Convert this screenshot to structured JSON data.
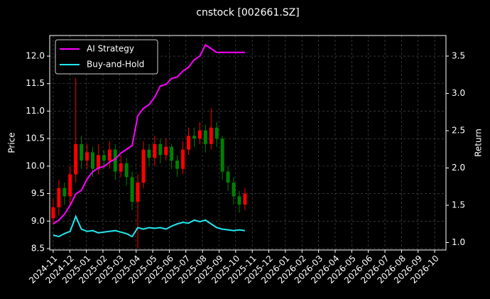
{
  "chart_data": {
    "type": "candlestick",
    "title": "cnstock [002661.SZ]",
    "y_label": "Price",
    "y2_label": "Return",
    "up_color": "#ff0000",
    "down_color": "#008000",
    "grid": true,
    "legend": "upper left",
    "x": [
      0,
      0.34,
      0.68,
      1.02,
      1.36,
      1.7,
      2.04,
      2.38,
      2.72,
      3.06,
      3.4,
      3.74,
      4.08,
      4.42,
      4.76,
      5.1,
      5.44,
      5.78,
      6.12,
      6.46,
      6.8,
      7.14,
      7.48,
      7.82,
      8.16,
      8.5,
      8.84,
      9.18,
      9.52,
      9.86,
      10.2,
      10.54,
      10.88,
      11.22,
      11.56
    ],
    "open": [
      9.05,
      9.25,
      9.6,
      9.45,
      9.85,
      10.4,
      10.1,
      10.25,
      9.95,
      10.2,
      10.1,
      10.3,
      9.9,
      10.05,
      9.8,
      9.35,
      9.7,
      10.3,
      10.15,
      10.4,
      10.2,
      10.35,
      10.1,
      9.95,
      10.3,
      10.55,
      10.5,
      10.65,
      10.4,
      10.7,
      10.5,
      9.9,
      9.7,
      9.45,
      9.3
    ],
    "high": [
      9.4,
      9.75,
      9.7,
      10.0,
      11.6,
      10.55,
      10.4,
      10.35,
      10.4,
      10.3,
      10.45,
      10.4,
      10.2,
      10.15,
      9.9,
      9.85,
      10.45,
      10.4,
      10.55,
      10.5,
      10.5,
      10.4,
      10.2,
      10.45,
      10.7,
      10.7,
      10.8,
      10.75,
      11.05,
      10.8,
      10.55,
      10.0,
      9.8,
      9.55,
      9.6
    ],
    "low": [
      8.95,
      9.1,
      9.3,
      9.3,
      9.7,
      9.95,
      9.95,
      9.8,
      9.85,
      9.95,
      9.95,
      9.75,
      9.8,
      9.65,
      9.2,
      8.5,
      9.6,
      10.0,
      10.0,
      10.05,
      10.1,
      9.95,
      9.8,
      9.85,
      10.2,
      10.35,
      10.4,
      10.25,
      10.3,
      10.35,
      9.75,
      9.55,
      9.3,
      9.15,
      9.2
    ],
    "close": [
      9.25,
      9.6,
      9.45,
      9.85,
      10.4,
      10.1,
      10.25,
      9.95,
      10.2,
      10.1,
      10.3,
      9.9,
      10.05,
      9.8,
      9.35,
      9.7,
      10.3,
      10.15,
      10.4,
      10.2,
      10.35,
      10.1,
      9.95,
      10.3,
      10.55,
      10.5,
      10.65,
      10.4,
      10.7,
      10.5,
      9.9,
      9.7,
      9.45,
      9.3,
      9.5
    ],
    "series": [
      {
        "name": "AI Strategy",
        "color": "#ff00ff",
        "axis": "y2",
        "values": [
          1.25,
          1.3,
          1.38,
          1.5,
          1.65,
          1.7,
          1.85,
          1.95,
          2.0,
          2.02,
          2.08,
          2.12,
          2.2,
          2.25,
          2.3,
          2.7,
          2.8,
          2.85,
          2.95,
          3.1,
          3.12,
          3.2,
          3.22,
          3.3,
          3.35,
          3.45,
          3.5,
          3.65,
          3.6,
          3.55,
          3.55,
          3.55,
          3.55,
          3.55,
          3.55
        ]
      },
      {
        "name": "Buy-and-Hold",
        "color": "#22e8f0",
        "axis": "y2",
        "values": [
          1.1,
          1.08,
          1.12,
          1.15,
          1.35,
          1.18,
          1.15,
          1.16,
          1.13,
          1.14,
          1.15,
          1.16,
          1.14,
          1.12,
          1.08,
          1.2,
          1.18,
          1.2,
          1.19,
          1.2,
          1.18,
          1.22,
          1.25,
          1.27,
          1.26,
          1.3,
          1.28,
          1.3,
          1.25,
          1.2,
          1.18,
          1.17,
          1.16,
          1.17,
          1.16
        ]
      }
    ],
    "xlim": [
      -0.21,
      23.68
    ],
    "xticks": [
      {
        "value": 0,
        "label": "2024-11"
      },
      {
        "value": 1,
        "label": "2024-12"
      },
      {
        "value": 2,
        "label": "2025-01"
      },
      {
        "value": 3,
        "label": "2025-02"
      },
      {
        "value": 4,
        "label": "2025-03"
      },
      {
        "value": 5,
        "label": "2025-04"
      },
      {
        "value": 6,
        "label": "2025-05"
      },
      {
        "value": 7,
        "label": "2025-06"
      },
      {
        "value": 8,
        "label": "2025-07"
      },
      {
        "value": 9,
        "label": "2025-08"
      },
      {
        "value": 10,
        "label": "2025-09"
      },
      {
        "value": 11,
        "label": "2025-10"
      },
      {
        "value": 12,
        "label": "2025-11"
      },
      {
        "value": 13,
        "label": "2025-12"
      },
      {
        "value": 14,
        "label": "2026-01"
      },
      {
        "value": 15,
        "label": "2026-02"
      },
      {
        "value": 16,
        "label": "2026-03"
      },
      {
        "value": 17,
        "label": "2026-04"
      },
      {
        "value": 18,
        "label": "2026-05"
      },
      {
        "value": 19,
        "label": "2026-06"
      },
      {
        "value": 20,
        "label": "2026-07"
      },
      {
        "value": 21,
        "label": "2026-08"
      },
      {
        "value": 22,
        "label": "2026-09"
      },
      {
        "value": 23,
        "label": "2026-10"
      }
    ],
    "ylim": [
      8.474,
      12.375
    ],
    "yticks": [
      8.5,
      {
        "value": 9,
        "label": "9.0"
      },
      9.5,
      {
        "value": 10,
        "label": "10.0"
      },
      10.5,
      {
        "value": 11,
        "label": "11.0"
      },
      11.5,
      {
        "value": 12,
        "label": "12.0"
      }
    ],
    "y2lim": [
      0.9,
      3.776
    ],
    "y2ticks": [
      {
        "value": 1,
        "label": "1.0"
      },
      1.5,
      {
        "value": 2,
        "label": "2.0"
      },
      2.5,
      {
        "value": 3,
        "label": "3.0"
      },
      3.5
    ]
  }
}
